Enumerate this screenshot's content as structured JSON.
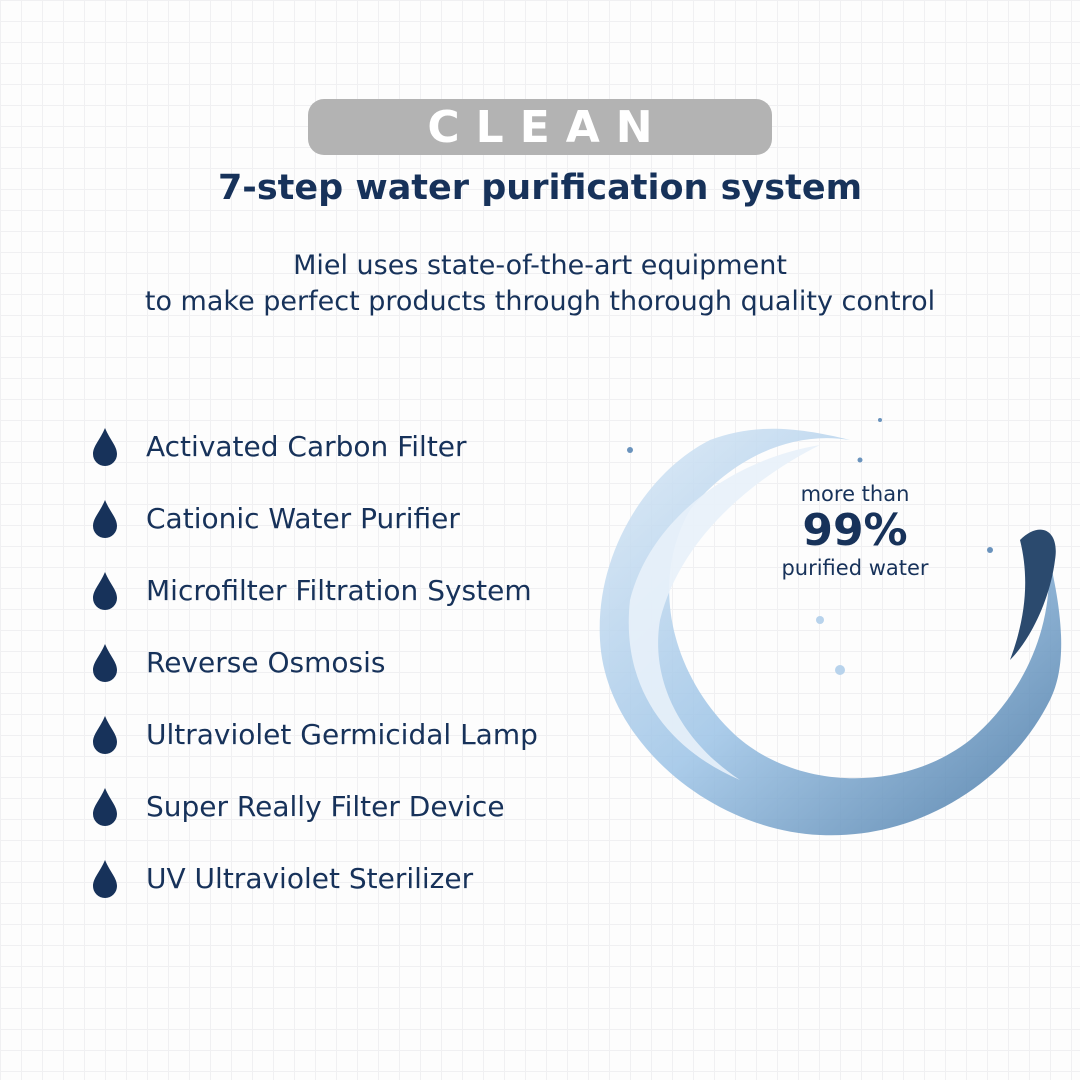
{
  "badge": "CLEAN",
  "title": "7-step water purification system",
  "subtitle": [
    "Miel uses state-of-the-art equipment",
    "to make perfect products through thorough quality control"
  ],
  "steps": [
    "Activated Carbon Filter",
    "Cationic Water Purifier",
    "Microfilter Filtration System",
    "Reverse Osmosis",
    "Ultraviolet Germicidal Lamp",
    "Super Really Filter Device",
    "UV Ultraviolet Sterilizer"
  ],
  "stat": {
    "line1": "more than",
    "value": "99%",
    "line2": "purified water"
  },
  "colors": {
    "text": "#17325a",
    "badge": "#b3b3b3",
    "water": "#8fb8e0"
  },
  "icons": {
    "bullet": "water-drop-icon",
    "image": "water-splash"
  }
}
